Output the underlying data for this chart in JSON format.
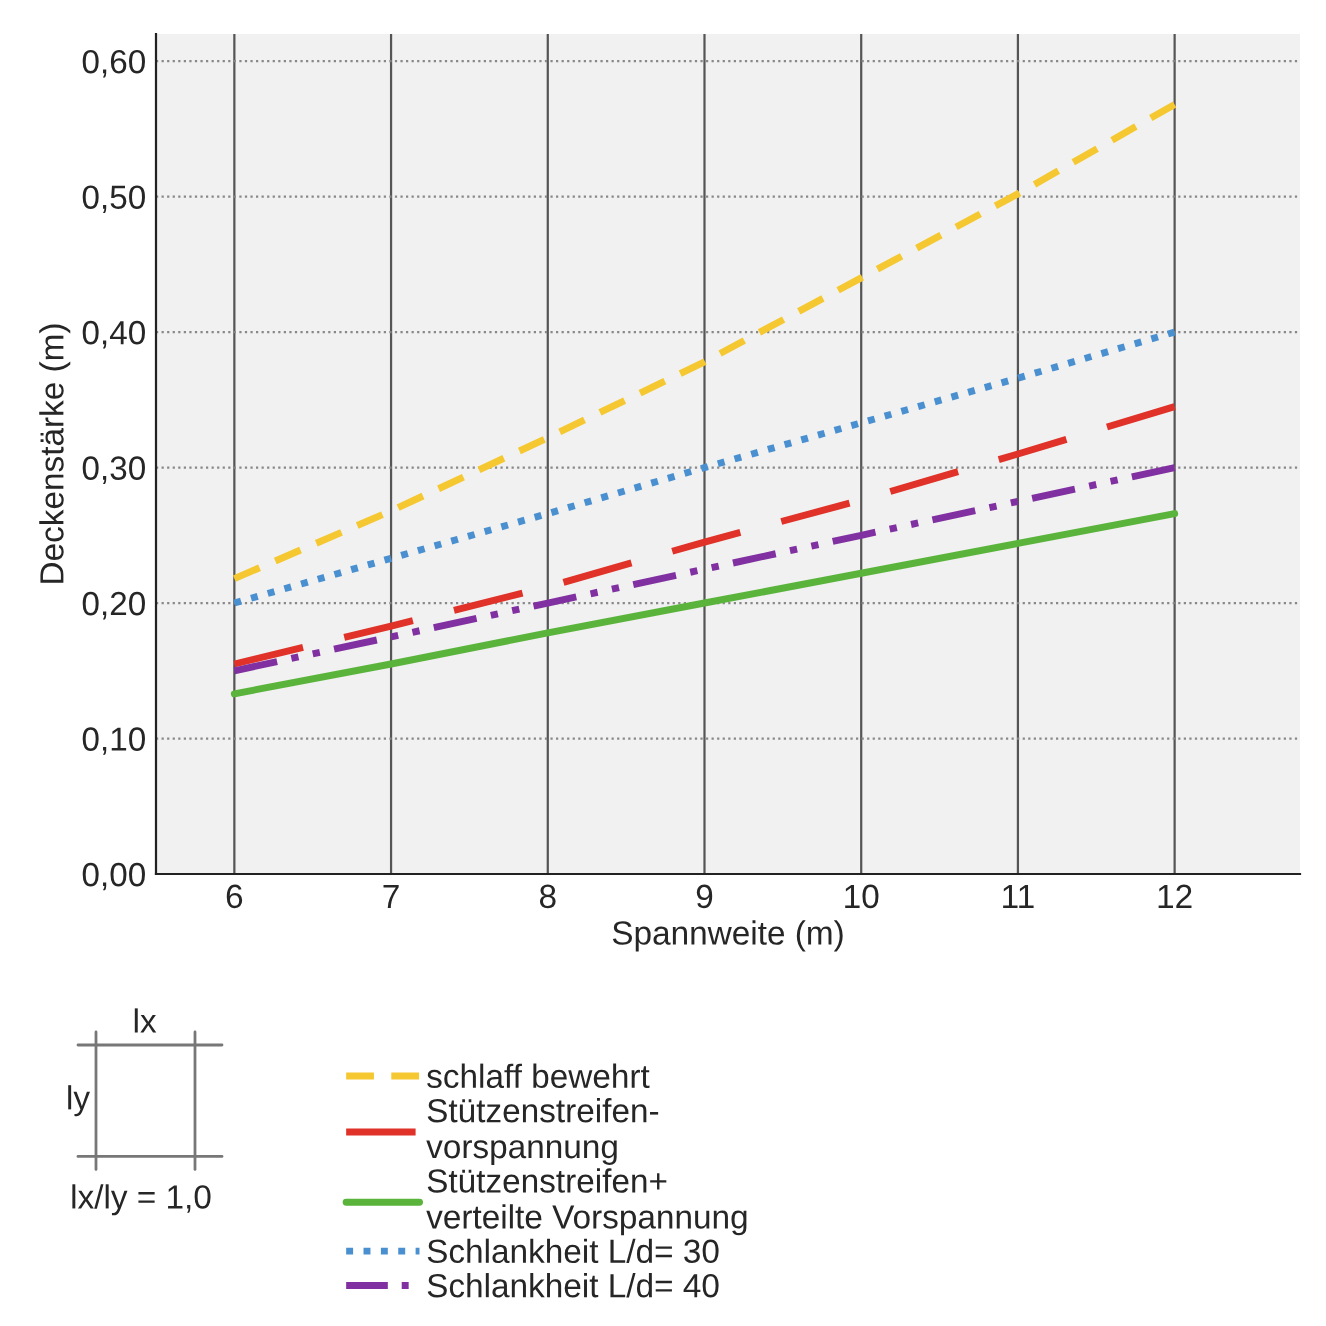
{
  "chart_data": {
    "type": "line",
    "xlabel": "Spannweite (m)",
    "ylabel": "Deckenstärke (m)",
    "x": [
      6,
      7,
      8,
      9,
      10,
      11,
      12
    ],
    "series": [
      {
        "name": "schlaff bewehrt",
        "color": "#f5c832",
        "line_style": "dashed",
        "values": [
          0.218,
          0.268,
          0.322,
          0.378,
          0.44,
          0.502,
          0.568
        ]
      },
      {
        "name": "Stützenstreifen-\nvorspannung",
        "color": "#e03228",
        "line_style": "longdash",
        "values": [
          0.155,
          0.183,
          0.212,
          0.245,
          0.276,
          0.31,
          0.345
        ]
      },
      {
        "name": "Stützenstreifen+\nverteilte Vorspannung",
        "color": "#5ab43c",
        "line_style": "solid",
        "values": [
          0.133,
          0.155,
          0.178,
          0.2,
          0.222,
          0.244,
          0.266
        ]
      },
      {
        "name": "Schlankheit L/d= 30",
        "color": "#4a90d0",
        "line_style": "dotted",
        "values": [
          0.2,
          0.233,
          0.266,
          0.3,
          0.333,
          0.366,
          0.4
        ]
      },
      {
        "name": "Schlankheit L/d= 40",
        "color": "#8030a0",
        "line_style": "dashdot",
        "values": [
          0.15,
          0.175,
          0.2,
          0.225,
          0.25,
          0.275,
          0.3
        ]
      }
    ],
    "xlim": [
      5.5,
      12.8
    ],
    "ylim": [
      0,
      0.62
    ],
    "xticks": [
      6,
      7,
      8,
      9,
      10,
      11,
      12
    ],
    "yticks": [
      {
        "value": 0,
        "label": "0,00"
      },
      {
        "value": 0.1,
        "label": "0,10"
      },
      {
        "value": 0.2,
        "label": "0,20"
      },
      {
        "value": 0.3,
        "label": "0,30"
      },
      {
        "value": 0.4,
        "label": "0,40"
      },
      {
        "value": 0.5,
        "label": "0,50"
      },
      {
        "value": 0.6,
        "label": "0,60"
      }
    ],
    "grid": true,
    "legend": "bottom",
    "annotations": [
      "lx",
      "ly",
      "lx/ly = 1,0"
    ]
  }
}
